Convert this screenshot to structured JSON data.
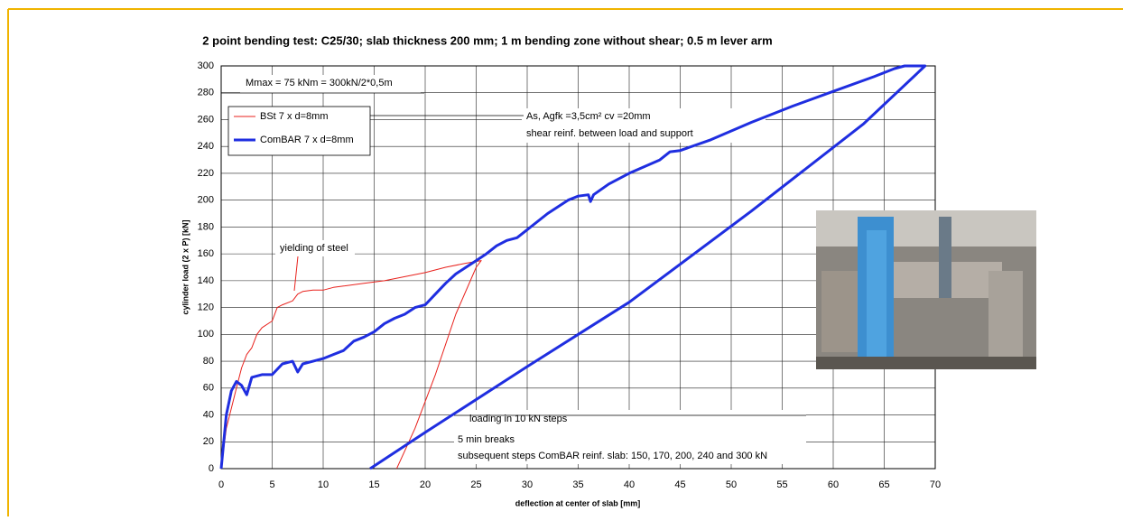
{
  "chart_data": {
    "type": "line",
    "title": "2 point bending test: C25/30; slab thickness 200 mm; 1 m bending zone without shear; 0.5 m lever arm",
    "x_label": "deflection at center of slab [mm]",
    "y_label": "cylinder load (2 x P) [kN]",
    "xlim": [
      0,
      70
    ],
    "xticks": [
      0,
      5,
      10,
      15,
      20,
      25,
      30,
      35,
      40,
      45,
      50,
      55,
      60,
      65,
      70
    ],
    "ylim": [
      0,
      300
    ],
    "yticks": [
      0,
      20,
      40,
      60,
      80,
      100,
      120,
      140,
      160,
      180,
      200,
      220,
      240,
      260,
      280,
      300
    ],
    "grid": true,
    "legend": "upper left",
    "annotations": [
      "Mmax  = 75 kNm = 300kN/2*0,5m",
      "As, Agfk =3,5cm² cv =20mm",
      "shear reinf. between load and support",
      "yielding of steel",
      "loading in 10 kN steps",
      "5 min breaks",
      "subsequent steps ComBAR reinf. slab: 150, 170, 200, 240 and 300 kN"
    ],
    "series": [
      {
        "name": "BSt 7 x d=8mm",
        "color": "#e8211c",
        "width": 1,
        "x": [
          0,
          0.5,
          1,
          1.5,
          2,
          2.5,
          3,
          3.5,
          4,
          5,
          5.5,
          6,
          7,
          7.5,
          8,
          9,
          10,
          11,
          12,
          14,
          16,
          18,
          20,
          22,
          24,
          25.5,
          25,
          23,
          21,
          19,
          17.5,
          17.2
        ],
        "values": [
          0,
          30,
          45,
          60,
          75,
          85,
          90,
          100,
          105,
          110,
          120,
          122,
          125,
          130,
          132,
          133,
          133,
          135,
          136,
          138,
          140,
          143,
          146,
          150,
          153,
          155,
          150,
          115,
          70,
          30,
          5,
          0
        ]
      },
      {
        "name": "ComBAR 7 x d=8mm",
        "color": "#1f2ee0",
        "width": 3,
        "x": [
          0,
          0.5,
          1,
          1.5,
          2,
          2.5,
          3,
          4,
          5,
          6,
          7,
          7.5,
          8,
          9,
          10,
          11,
          12,
          13,
          14,
          15,
          16,
          17,
          18,
          19,
          20,
          21,
          22,
          23,
          24,
          25,
          26,
          27,
          28,
          29,
          30,
          32,
          34,
          35,
          36,
          36.2,
          36.5,
          38,
          40,
          43,
          44,
          45,
          48,
          52,
          56,
          60,
          64,
          66,
          67,
          69,
          63,
          52,
          40,
          30,
          20,
          14.6
        ],
        "values": [
          0,
          40,
          58,
          65,
          62,
          55,
          68,
          70,
          70,
          78,
          80,
          72,
          78,
          80,
          82,
          85,
          88,
          95,
          98,
          102,
          108,
          112,
          115,
          120,
          122,
          130,
          138,
          145,
          150,
          155,
          160,
          166,
          170,
          172,
          178,
          190,
          200,
          203,
          204,
          199,
          204,
          212,
          220,
          230,
          236,
          237,
          245,
          258,
          270,
          281,
          292,
          298,
          300,
          300,
          257,
          192,
          124,
          76,
          27,
          0
        ]
      }
    ]
  }
}
